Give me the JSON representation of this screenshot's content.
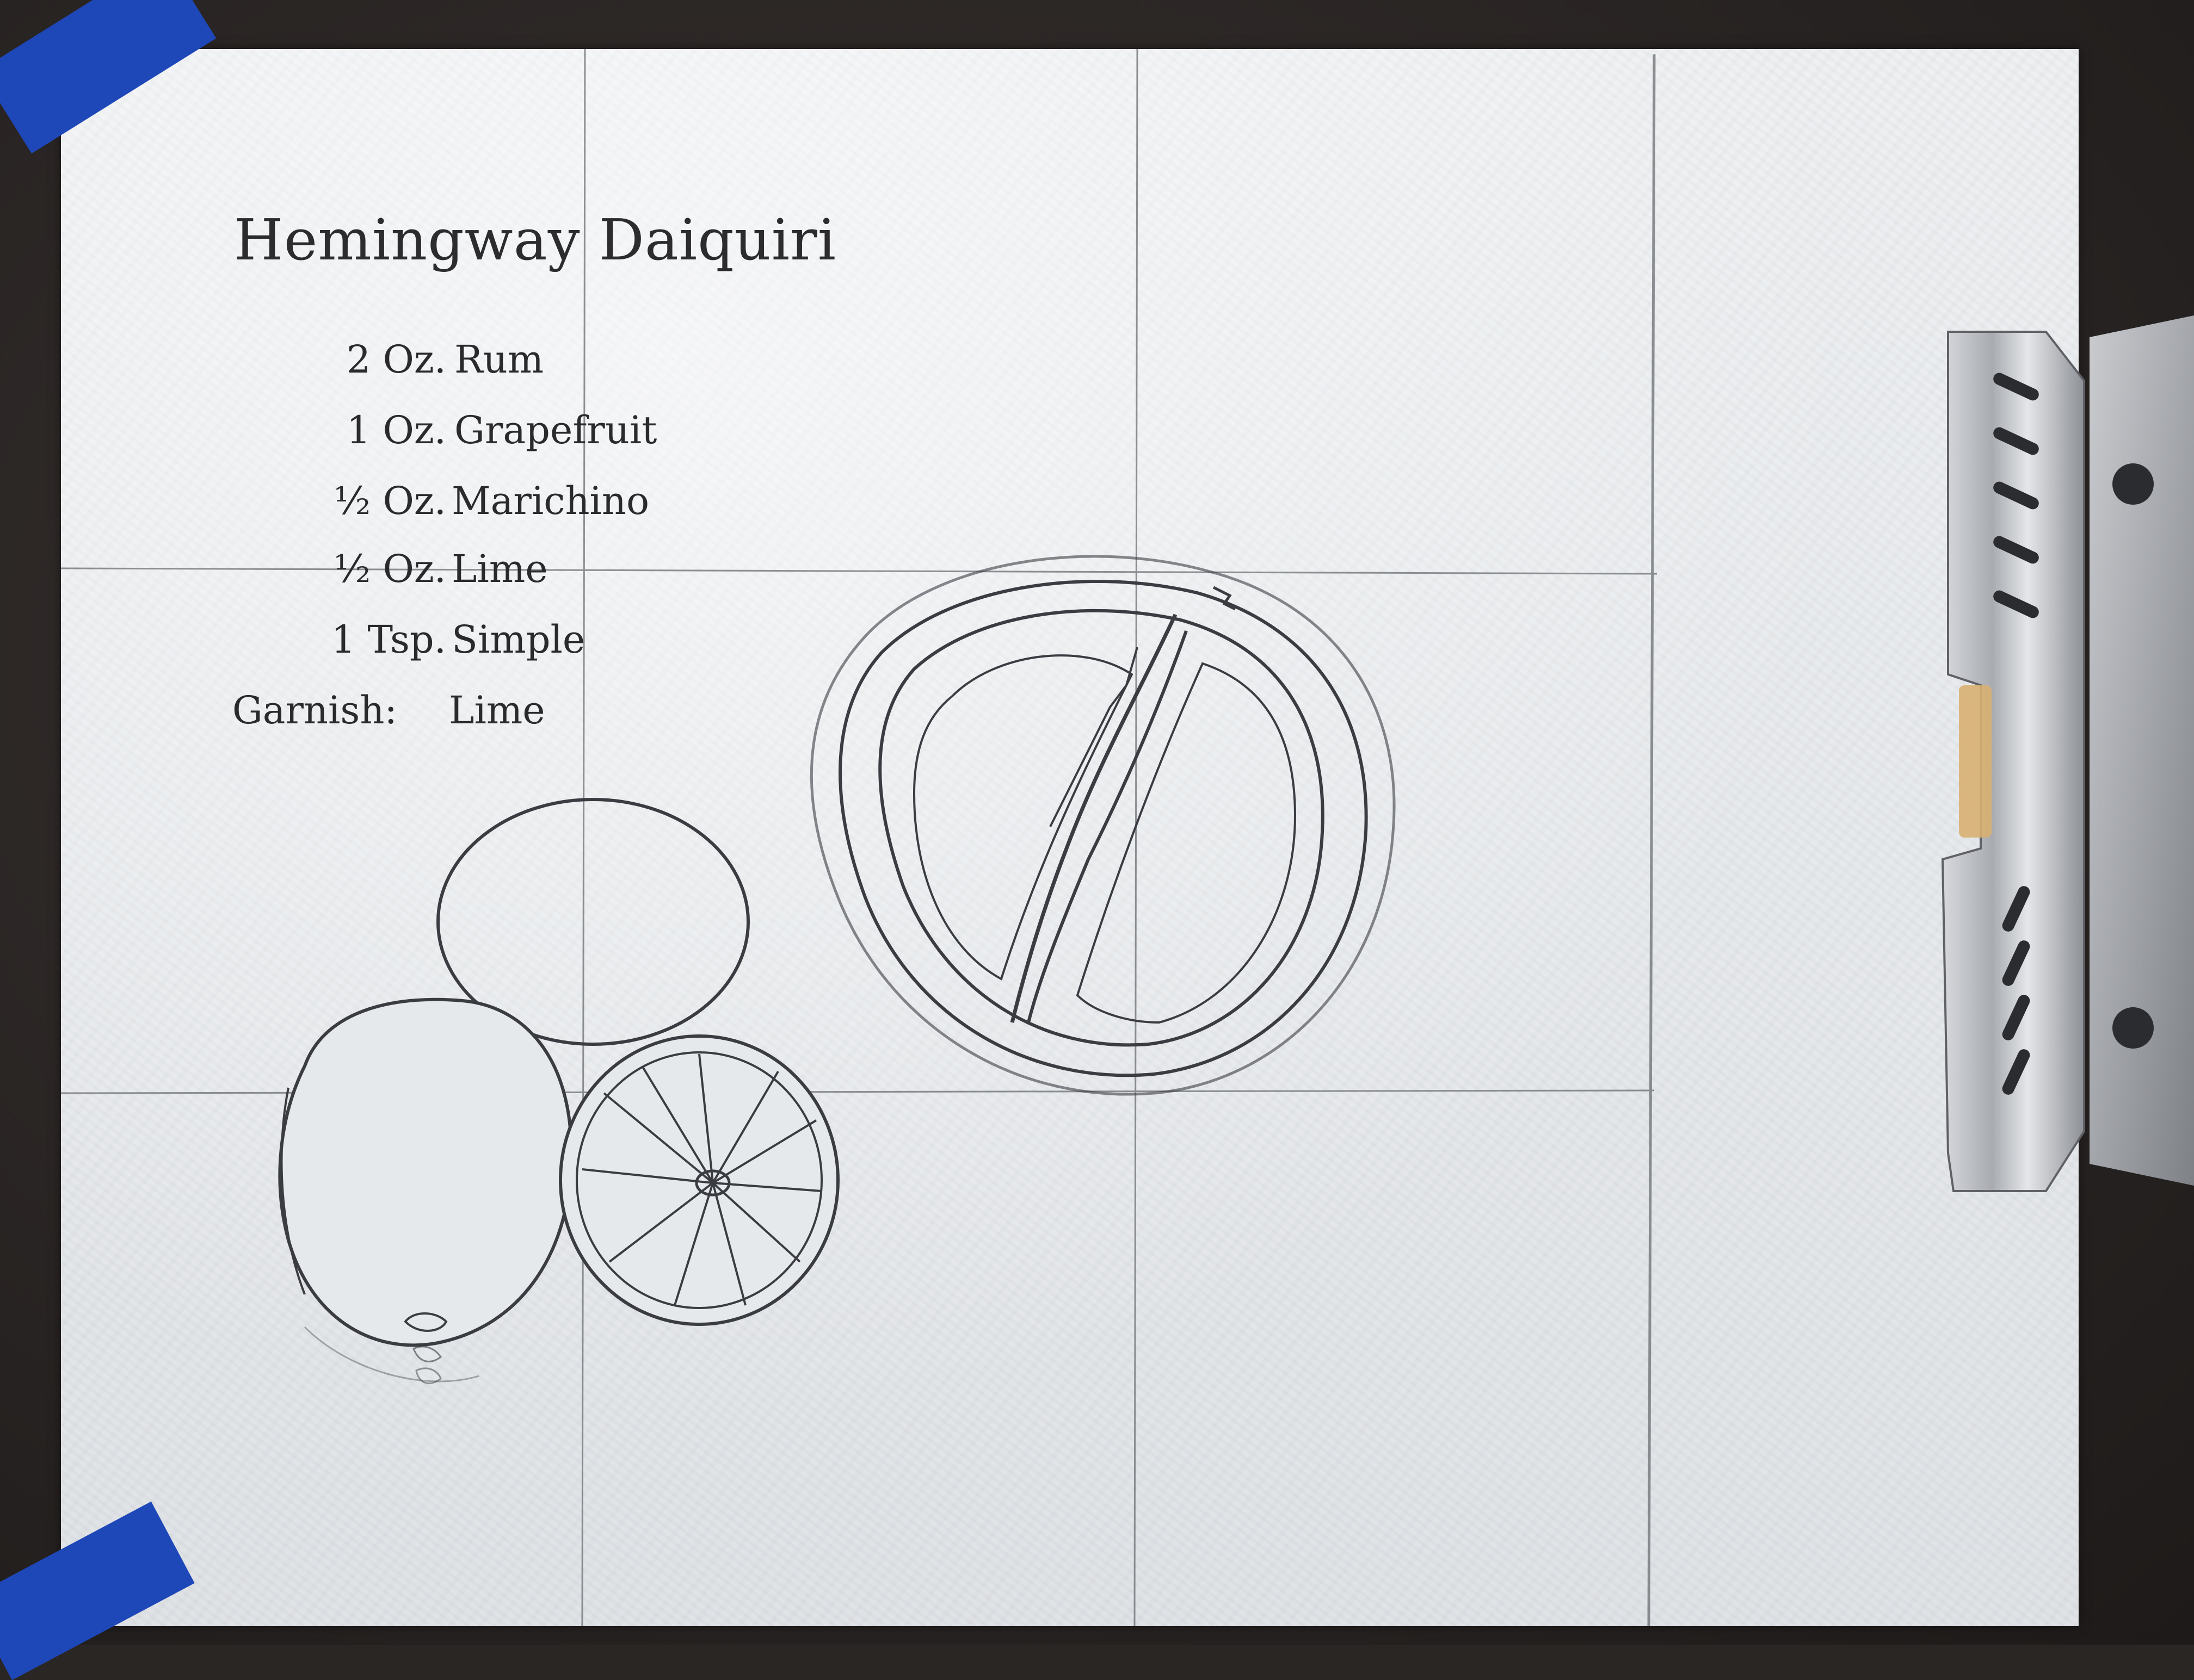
{
  "recipe": {
    "title": "Hemingway Daiquiri",
    "ingredients": [
      {
        "qty": "2 Oz.",
        "name": "Rum"
      },
      {
        "qty": "1 Oz.",
        "name": "Grapefruit"
      },
      {
        "qty": "½ Oz.",
        "name": "Marichino"
      },
      {
        "qty": "½ Oz.",
        "name": "Lime"
      },
      {
        "qty": "1 Tsp.",
        "name": "Simple"
      },
      {
        "qty": "Garnish:",
        "name": "Lime"
      }
    ]
  },
  "colors": {
    "paper": "#e9ecef",
    "ink": "#2c2c2e",
    "tape": "#1e47b8",
    "background": "#2a2624",
    "clip_metal": "#b7b9bd"
  },
  "icons": [
    "blue-tape-icon",
    "clipboard-clip-icon"
  ]
}
